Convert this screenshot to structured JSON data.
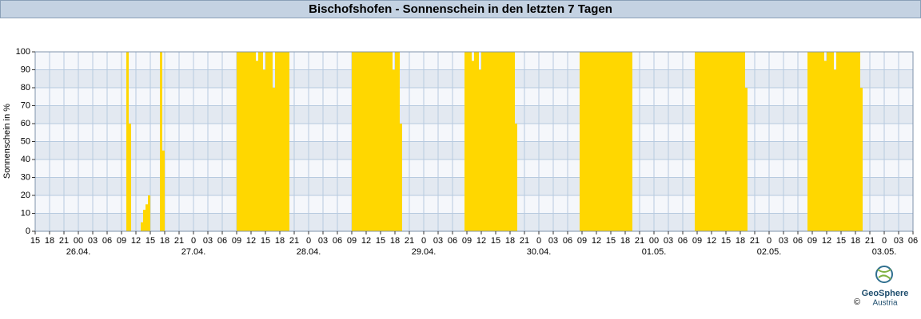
{
  "chart_data": {
    "type": "bar",
    "title": "Bischofshofen - Sonnenschein in den letzten 7 Tagen",
    "y_label": "Sonnenschein in %",
    "color": "#ffd700",
    "grid": true,
    "x": [
      34,
      34.5,
      37,
      37.5,
      38,
      38.5,
      41,
      41.5,
      57,
      57.5,
      58,
      58.5,
      59,
      59.5,
      60,
      60.5,
      61,
      61.5,
      62,
      62.5,
      63,
      63.5,
      64,
      64.5,
      65,
      65.5,
      66,
      66.5,
      67,
      67.5,
      81,
      81.5,
      82,
      82.5,
      83,
      83.5,
      84,
      84.5,
      85,
      85.5,
      86,
      86.5,
      87,
      87.5,
      88,
      88.5,
      89,
      89.5,
      90,
      90.5,
      91,
      104.5,
      105,
      105.5,
      106,
      106.5,
      107,
      107.5,
      108,
      108.5,
      109,
      109.5,
      110,
      110.5,
      111,
      111.5,
      112,
      112.5,
      113,
      113.5,
      114,
      114.5,
      115,
      128.5,
      129,
      129.5,
      130,
      130.5,
      131,
      131.5,
      132,
      132.5,
      133,
      133.5,
      134,
      134.5,
      135,
      135.5,
      136,
      136.5,
      137,
      137.5,
      138,
      138.5,
      139,
      152.5,
      153,
      153.5,
      154,
      154.5,
      155,
      155.5,
      156,
      156.5,
      157,
      157.5,
      158,
      158.5,
      159,
      159.5,
      160,
      160.5,
      161,
      161.5,
      162,
      162.5,
      163,
      176,
      176.5,
      177,
      177.5,
      178,
      178.5,
      179,
      179.5,
      180,
      180.5,
      181,
      181.5,
      182,
      182.5,
      183,
      183.5,
      184,
      184.5,
      185,
      185.5,
      186,
      186.5,
      187
    ],
    "values": [
      100,
      60,
      5,
      12,
      15,
      20,
      100,
      45,
      100,
      100,
      100,
      100,
      100,
      100,
      100,
      100,
      95,
      100,
      100,
      90,
      100,
      100,
      100,
      80,
      100,
      100,
      100,
      100,
      100,
      100,
      100,
      100,
      100,
      100,
      100,
      100,
      100,
      100,
      100,
      100,
      100,
      100,
      100,
      100,
      100,
      100,
      100,
      90,
      100,
      100,
      60,
      100,
      100,
      100,
      95,
      100,
      100,
      90,
      100,
      100,
      100,
      100,
      100,
      100,
      100,
      100,
      100,
      100,
      100,
      100,
      100,
      100,
      60,
      100,
      100,
      100,
      100,
      100,
      100,
      100,
      100,
      100,
      100,
      100,
      100,
      100,
      100,
      100,
      100,
      100,
      100,
      100,
      100,
      100,
      100,
      100,
      100,
      100,
      100,
      100,
      100,
      100,
      100,
      100,
      100,
      100,
      100,
      100,
      100,
      100,
      100,
      100,
      100,
      100,
      100,
      100,
      80,
      100,
      100,
      100,
      100,
      100,
      100,
      100,
      95,
      100,
      100,
      100,
      90,
      100,
      100,
      100,
      100,
      100,
      100,
      100,
      100,
      100,
      100,
      80
    ],
    "bar_width": 0.5,
    "xlim": [
      15,
      198
    ],
    "xticks": [
      15,
      18,
      21,
      {
        "value": 24,
        "label": "00"
      },
      {
        "value": 27,
        "label": "03"
      },
      {
        "value": 30,
        "label": "06"
      },
      {
        "value": 33,
        "label": "09"
      },
      {
        "value": 36,
        "label": "12"
      },
      {
        "value": 39,
        "label": "15"
      },
      {
        "value": 42,
        "label": "18"
      },
      {
        "value": 45,
        "label": "21"
      },
      {
        "value": 48,
        "label": "0"
      },
      {
        "value": 51,
        "label": "03"
      },
      {
        "value": 54,
        "label": "06"
      },
      {
        "value": 57,
        "label": "09"
      },
      {
        "value": 60,
        "label": "12"
      },
      {
        "value": 63,
        "label": "15"
      },
      {
        "value": 66,
        "label": "18"
      },
      {
        "value": 69,
        "label": "21"
      },
      {
        "value": 72,
        "label": "0"
      },
      {
        "value": 75,
        "label": "03"
      },
      {
        "value": 78,
        "label": "06"
      },
      {
        "value": 81,
        "label": "09"
      },
      {
        "value": 84,
        "label": "12"
      },
      {
        "value": 87,
        "label": "15"
      },
      {
        "value": 90,
        "label": "18"
      },
      {
        "value": 93,
        "label": "21"
      },
      {
        "value": 96,
        "label": "0"
      },
      {
        "value": 99,
        "label": "03"
      },
      {
        "value": 102,
        "label": "06"
      },
      {
        "value": 105,
        "label": "09"
      },
      {
        "value": 108,
        "label": "12"
      },
      {
        "value": 111,
        "label": "15"
      },
      {
        "value": 114,
        "label": "18"
      },
      {
        "value": 117,
        "label": "21"
      },
      {
        "value": 120,
        "label": "0"
      },
      {
        "value": 123,
        "label": "03"
      },
      {
        "value": 126,
        "label": "06"
      },
      {
        "value": 129,
        "label": "09"
      },
      {
        "value": 132,
        "label": "12"
      },
      {
        "value": 135,
        "label": "15"
      },
      {
        "value": 138,
        "label": "18"
      },
      {
        "value": 141,
        "label": "21"
      },
      {
        "value": 144,
        "label": "00"
      },
      {
        "value": 147,
        "label": "03"
      },
      {
        "value": 150,
        "label": "06"
      },
      {
        "value": 153,
        "label": "09"
      },
      {
        "value": 156,
        "label": "12"
      },
      {
        "value": 159,
        "label": "15"
      },
      {
        "value": 162,
        "label": "18"
      },
      {
        "value": 165,
        "label": "21"
      },
      {
        "value": 168,
        "label": "0"
      },
      {
        "value": 171,
        "label": "03"
      },
      {
        "value": 174,
        "label": "06"
      },
      {
        "value": 177,
        "label": "09"
      },
      {
        "value": 180,
        "label": "12"
      },
      {
        "value": 183,
        "label": "15"
      },
      {
        "value": 186,
        "label": "18"
      },
      {
        "value": 189,
        "label": "21"
      },
      {
        "value": 192,
        "label": "0"
      },
      {
        "value": 195,
        "label": "03"
      },
      {
        "value": 198,
        "label": "06"
      }
    ],
    "day_ticks": [
      {
        "value": 24,
        "label": "26.04."
      },
      {
        "value": 48,
        "label": "27.04."
      },
      {
        "value": 72,
        "label": "28.04."
      },
      {
        "value": 96,
        "label": "29.04."
      },
      {
        "value": 120,
        "label": "30.04."
      },
      {
        "value": 144,
        "label": "01.05."
      },
      {
        "value": 168,
        "label": "02.05."
      },
      {
        "value": 192,
        "label": "03.05."
      }
    ],
    "ylim": [
      0,
      100
    ],
    "yticks": [
      0,
      10,
      20,
      30,
      40,
      50,
      60,
      70,
      80,
      90,
      100
    ]
  },
  "logo": {
    "name": "GeoSphere",
    "sub": "Austria",
    "copyright": "©"
  }
}
